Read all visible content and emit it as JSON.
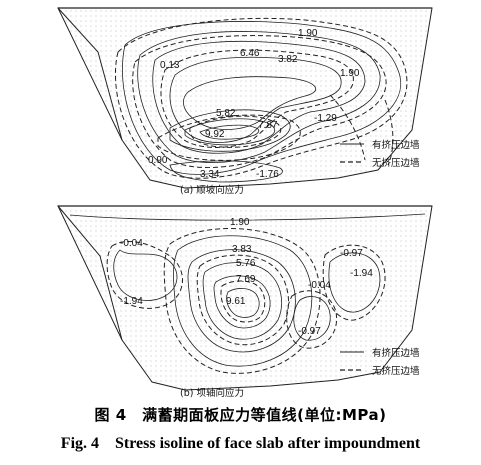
{
  "panel_a": {
    "subtitle": "(a) 顺坡向应力",
    "contour_labels": [
      "1.90",
      "0.13",
      "6.46",
      "3.82",
      "1.90",
      "5.82",
      "7.87",
      "9.92",
      "-1.29",
      "0.90",
      "3.34",
      "-1.76"
    ],
    "legend": {
      "solid": "有挤压边墙",
      "dashed": "无挤压边墙"
    }
  },
  "panel_b": {
    "subtitle": "(b) 坝轴向应力",
    "contour_labels": [
      "1.90",
      "-0.04",
      "3.83",
      "5.76",
      "7.69",
      "9.61",
      "-1.94",
      "-0.04",
      "-0.97",
      "-1.94",
      "-0.97"
    ],
    "legend": {
      "solid": "有挤压边墙",
      "dashed": "无挤压边墙"
    }
  },
  "caption": {
    "zh": "图 4　满蓄期面板应力等值线(单位:MPa)",
    "en": "Fig. 4　Stress isoline of face slab after impoundment"
  }
}
